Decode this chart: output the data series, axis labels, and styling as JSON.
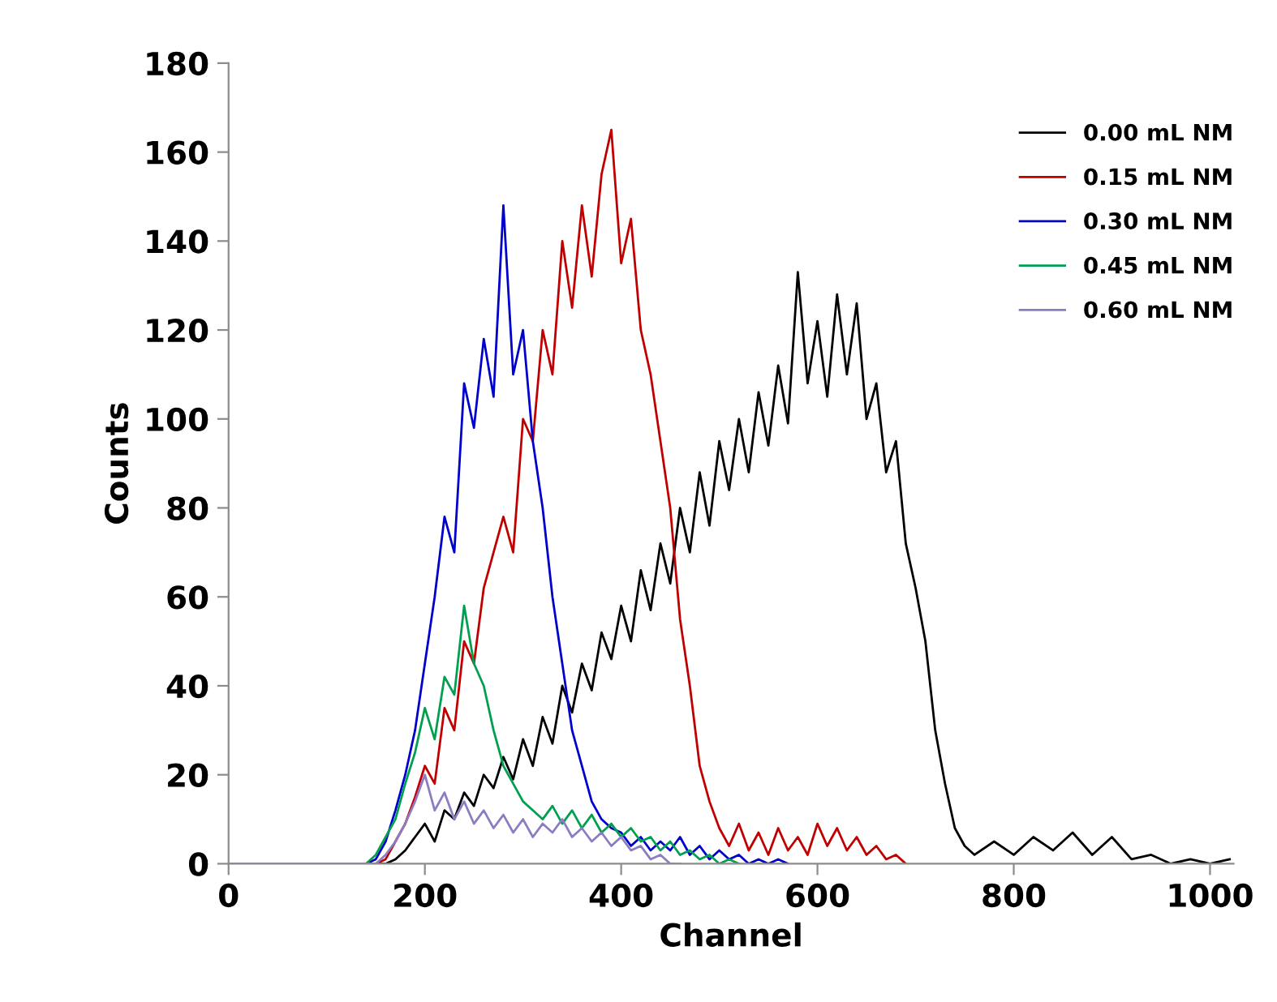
{
  "chart_data": {
    "type": "line",
    "xlabel": "Channel",
    "ylabel": "Counts",
    "xlim": [
      0,
      1024
    ],
    "xticks": [
      0,
      200,
      400,
      600,
      800,
      1000
    ],
    "ylim": [
      0,
      180
    ],
    "yticks": [
      0,
      20,
      40,
      60,
      80,
      100,
      120,
      140,
      160,
      180
    ],
    "grid": false,
    "legend": "top right",
    "marker": "none",
    "line_style": "solid",
    "series": [
      {
        "name": "0.00 mL NM",
        "color": "#000000",
        "x": [
          0,
          150,
          160,
          170,
          180,
          190,
          200,
          210,
          220,
          230,
          240,
          250,
          260,
          270,
          280,
          290,
          300,
          310,
          320,
          330,
          340,
          350,
          360,
          370,
          380,
          390,
          400,
          410,
          420,
          430,
          440,
          450,
          460,
          470,
          480,
          490,
          500,
          510,
          520,
          530,
          540,
          550,
          560,
          570,
          580,
          590,
          600,
          610,
          620,
          630,
          640,
          650,
          660,
          670,
          680,
          690,
          700,
          710,
          720,
          730,
          740,
          750,
          760,
          780,
          800,
          820,
          840,
          860,
          880,
          900,
          920,
          940,
          960,
          980,
          1000,
          1020
        ],
        "values": [
          0,
          0,
          0,
          1,
          3,
          6,
          9,
          5,
          12,
          10,
          16,
          13,
          20,
          17,
          24,
          19,
          28,
          22,
          33,
          27,
          40,
          34,
          45,
          39,
          52,
          46,
          58,
          50,
          66,
          57,
          72,
          63,
          80,
          70,
          88,
          76,
          95,
          84,
          100,
          88,
          106,
          94,
          112,
          99,
          133,
          108,
          122,
          105,
          128,
          110,
          126,
          100,
          108,
          88,
          95,
          72,
          62,
          50,
          30,
          18,
          8,
          4,
          2,
          5,
          2,
          6,
          3,
          7,
          2,
          6,
          1,
          2,
          0,
          1,
          0,
          1
        ]
      },
      {
        "name": "0.15 mL NM",
        "color": "#c00000",
        "x": [
          0,
          140,
          150,
          160,
          170,
          180,
          190,
          200,
          210,
          220,
          230,
          240,
          250,
          260,
          270,
          280,
          290,
          300,
          310,
          320,
          330,
          340,
          350,
          360,
          370,
          380,
          390,
          400,
          410,
          420,
          430,
          440,
          450,
          460,
          470,
          480,
          490,
          500,
          510,
          520,
          530,
          540,
          550,
          560,
          570,
          580,
          590,
          600,
          610,
          620,
          630,
          640,
          650,
          660,
          670,
          680,
          690
        ],
        "values": [
          0,
          0,
          0,
          1,
          5,
          9,
          15,
          22,
          18,
          35,
          30,
          50,
          45,
          62,
          70,
          78,
          70,
          100,
          95,
          120,
          110,
          140,
          125,
          148,
          132,
          155,
          165,
          135,
          145,
          120,
          110,
          95,
          80,
          55,
          40,
          22,
          14,
          8,
          4,
          9,
          3,
          7,
          2,
          8,
          3,
          6,
          2,
          9,
          4,
          8,
          3,
          6,
          2,
          4,
          1,
          2,
          0
        ]
      },
      {
        "name": "0.30 mL NM",
        "color": "#0000cc",
        "x": [
          0,
          140,
          150,
          160,
          170,
          180,
          190,
          200,
          210,
          220,
          230,
          240,
          250,
          260,
          270,
          280,
          290,
          300,
          310,
          320,
          330,
          340,
          350,
          360,
          370,
          380,
          390,
          400,
          410,
          420,
          430,
          440,
          450,
          460,
          470,
          480,
          490,
          500,
          510,
          520,
          530,
          540,
          550,
          560,
          570
        ],
        "values": [
          0,
          0,
          1,
          5,
          12,
          20,
          30,
          45,
          60,
          78,
          70,
          108,
          98,
          118,
          105,
          148,
          110,
          120,
          95,
          80,
          60,
          45,
          30,
          22,
          14,
          10,
          8,
          7,
          4,
          6,
          3,
          5,
          3,
          6,
          2,
          4,
          1,
          3,
          1,
          2,
          0,
          1,
          0,
          1,
          0
        ]
      },
      {
        "name": "0.45 mL NM",
        "color": "#00a050",
        "x": [
          0,
          140,
          150,
          160,
          170,
          180,
          190,
          200,
          210,
          220,
          230,
          240,
          250,
          260,
          270,
          280,
          290,
          300,
          310,
          320,
          330,
          340,
          350,
          360,
          370,
          380,
          390,
          400,
          410,
          420,
          430,
          440,
          450,
          460,
          470,
          480,
          490,
          500,
          510,
          520
        ],
        "values": [
          0,
          0,
          2,
          6,
          10,
          18,
          25,
          35,
          28,
          42,
          38,
          58,
          45,
          40,
          30,
          22,
          18,
          14,
          12,
          10,
          13,
          9,
          12,
          8,
          11,
          7,
          9,
          6,
          8,
          5,
          6,
          3,
          5,
          2,
          3,
          1,
          2,
          0,
          1,
          0
        ]
      },
      {
        "name": "0.60 mL NM",
        "color": "#8e7cc3",
        "x": [
          0,
          140,
          150,
          160,
          170,
          180,
          190,
          200,
          210,
          220,
          230,
          240,
          250,
          260,
          270,
          280,
          290,
          300,
          310,
          320,
          330,
          340,
          350,
          360,
          370,
          380,
          390,
          400,
          410,
          420,
          430,
          440,
          450,
          460
        ],
        "values": [
          0,
          0,
          0,
          2,
          5,
          9,
          14,
          20,
          12,
          16,
          10,
          14,
          9,
          12,
          8,
          11,
          7,
          10,
          6,
          9,
          7,
          10,
          6,
          8,
          5,
          7,
          4,
          6,
          3,
          4,
          1,
          2,
          0,
          0
        ]
      }
    ]
  }
}
